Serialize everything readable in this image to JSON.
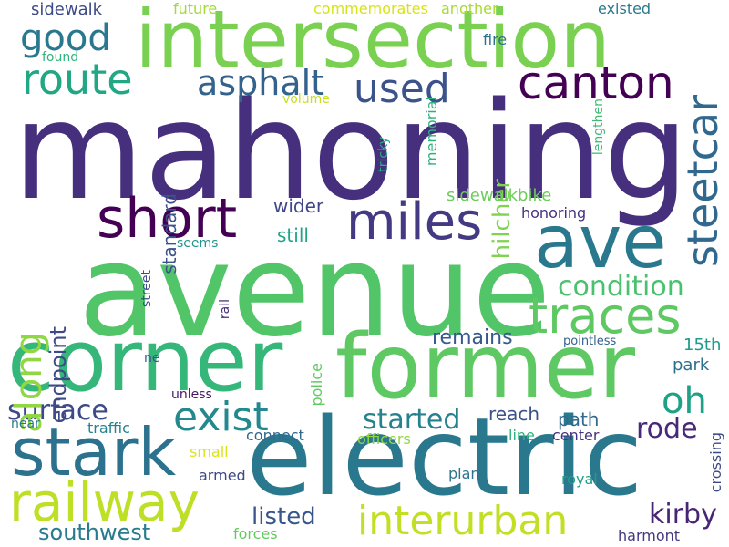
{
  "words": [
    {
      "text": "mahoning",
      "color": "#46307e"
    },
    {
      "text": "avenue",
      "color": "#52c569"
    },
    {
      "text": "electric",
      "color": "#2a788e"
    },
    {
      "text": "intersection",
      "color": "#7ad151"
    },
    {
      "text": "former",
      "color": "#5ec962"
    },
    {
      "text": "corner",
      "color": "#35b779"
    },
    {
      "text": "stark",
      "color": "#2c728e"
    },
    {
      "text": "railway",
      "color": "#bddf26"
    },
    {
      "text": "ave",
      "color": "#2a788e"
    },
    {
      "text": "miles",
      "color": "#443983"
    },
    {
      "text": "short",
      "color": "#440154"
    },
    {
      "text": "traces",
      "color": "#5ec962"
    },
    {
      "text": "interurban",
      "color": "#c2df23"
    },
    {
      "text": "canton",
      "color": "#440154"
    },
    {
      "text": "steetcar",
      "color": "#31688e"
    },
    {
      "text": "route",
      "color": "#22a785"
    },
    {
      "text": "good",
      "color": "#2a788e"
    },
    {
      "text": "asphalt",
      "color": "#33638d"
    },
    {
      "text": "used",
      "color": "#3b528b"
    },
    {
      "text": "exist",
      "color": "#23898e"
    },
    {
      "text": "oh",
      "color": "#1fa187"
    },
    {
      "text": "surface",
      "color": "#3e4989"
    },
    {
      "text": "along",
      "color": "#90d743"
    },
    {
      "text": "condition",
      "color": "#4ac16d"
    },
    {
      "text": "started",
      "color": "#26828e"
    },
    {
      "text": "rode",
      "color": "#482878"
    },
    {
      "text": "kirby",
      "color": "#482475"
    },
    {
      "text": "southwest",
      "color": "#287c8e"
    },
    {
      "text": "listed",
      "color": "#39568c"
    },
    {
      "text": "remains",
      "color": "#38598c"
    },
    {
      "text": "endpoint",
      "color": "#3e4989"
    },
    {
      "text": "hilcher",
      "color": "#7fd34e"
    },
    {
      "text": "standard",
      "color": "#3b528b"
    },
    {
      "text": "sidewalkbike",
      "color": "#6ccd5a"
    },
    {
      "text": "wider",
      "color": "#3f4788"
    },
    {
      "text": "still",
      "color": "#20a486"
    },
    {
      "text": "path",
      "color": "#31688e"
    },
    {
      "text": "reach",
      "color": "#3b528b"
    },
    {
      "text": "park",
      "color": "#2d708e"
    },
    {
      "text": "15th",
      "color": "#1e9b8a"
    },
    {
      "text": "sidewalk",
      "color": "#3e4a89"
    },
    {
      "text": "future",
      "color": "#a2da37"
    },
    {
      "text": "commemorates",
      "color": "#d8e219"
    },
    {
      "text": "another",
      "color": "#a8db34"
    },
    {
      "text": "existed",
      "color": "#2a778e"
    },
    {
      "text": "fire",
      "color": "#2e6f8e"
    },
    {
      "text": "found",
      "color": "#2fb47c"
    },
    {
      "text": "volume",
      "color": "#c8e020"
    },
    {
      "text": "memorial",
      "color": "#2db27d"
    },
    {
      "text": "tricky",
      "color": "#27ad81"
    },
    {
      "text": "lengthen",
      "color": "#3fbc73"
    },
    {
      "text": "honoring",
      "color": "#46307e"
    },
    {
      "text": "seems",
      "color": "#1f958b"
    },
    {
      "text": "street",
      "color": "#3e4c8a"
    },
    {
      "text": "rail",
      "color": "#472d7b"
    },
    {
      "text": "pointless",
      "color": "#33638d"
    },
    {
      "text": "ne",
      "color": "#3b528b"
    },
    {
      "text": "police",
      "color": "#60ca60"
    },
    {
      "text": "unless",
      "color": "#481668"
    },
    {
      "text": "near",
      "color": "#2a788e"
    },
    {
      "text": "traffic",
      "color": "#25838e"
    },
    {
      "text": "connect",
      "color": "#31688e"
    },
    {
      "text": "officers",
      "color": "#8fd744"
    },
    {
      "text": "line",
      "color": "#2eb37c"
    },
    {
      "text": "center",
      "color": "#46337f"
    },
    {
      "text": "small",
      "color": "#dde318"
    },
    {
      "text": "armed",
      "color": "#3e4989"
    },
    {
      "text": "plan",
      "color": "#2c738e"
    },
    {
      "text": "royal",
      "color": "#1fa088"
    },
    {
      "text": "crossing",
      "color": "#3e4989"
    },
    {
      "text": "forces",
      "color": "#63cb5f"
    },
    {
      "text": "harmont",
      "color": "#453882"
    }
  ]
}
